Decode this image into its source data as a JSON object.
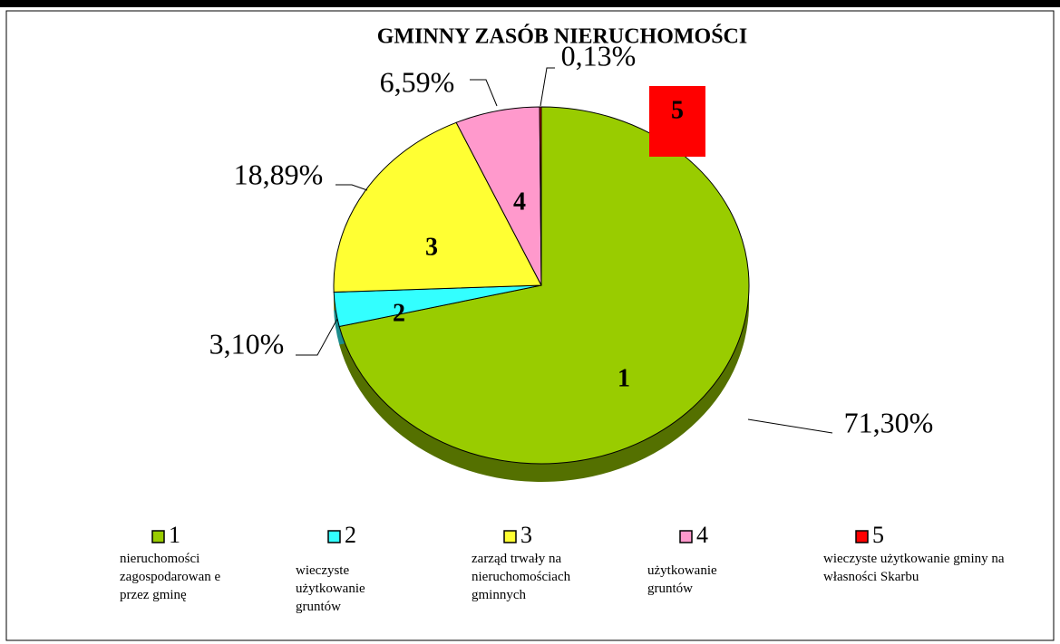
{
  "chart_data": {
    "type": "pie",
    "title": "GMINNY ZASÓB NIERUCHOMOŚCI",
    "categories": [
      "1",
      "2",
      "3",
      "4",
      "5"
    ],
    "descriptions": [
      "nieruchomości zagospodarowan e przez gminę",
      "wieczyste użytkowanie gruntów",
      "zarząd trwały na nieruchomościach gminnych",
      "użytkowanie gruntów",
      "wieczyste użytkowanie gminy na własności Skarbu"
    ],
    "values": [
      71.3,
      3.1,
      18.89,
      6.59,
      0.13
    ],
    "value_labels": [
      "71,30%",
      "3,10%",
      "18,89%",
      "6,59%",
      "0,13%"
    ],
    "colors": [
      "#99cc00",
      "#33ffff",
      "#ffff33",
      "#ff99cc",
      "#ff0000"
    ],
    "start_angle": 0,
    "direction": "clockwise",
    "legend": "bottom"
  }
}
